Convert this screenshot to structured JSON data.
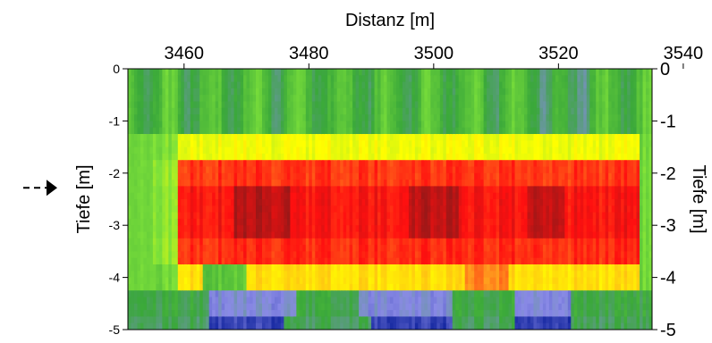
{
  "chart_data": {
    "type": "heatmap",
    "xlabel": "Distanz [m]",
    "ylabel_left": "Tiefe [m]",
    "ylabel_right": "Tiefe [m]",
    "xlim": [
      3451,
      3535
    ],
    "ylim": [
      -5,
      0
    ],
    "x_ticks": [
      3460,
      3480,
      3500,
      3520,
      3540
    ],
    "y_ticks": [
      0,
      -1,
      -2,
      -3,
      -4,
      -5
    ],
    "grid": false,
    "colormap": [
      "#0a1e9a",
      "#8a8ae6",
      "#3aa83a",
      "#7ee23a",
      "#ffff00",
      "#ff9c1e",
      "#ff1010",
      "#7a1a1a"
    ],
    "marker": {
      "label": "dashed arrow",
      "depth": -2.35,
      "color": "#000000"
    },
    "layers": [
      {
        "depth_top": 0.0,
        "depth_bottom": -0.6,
        "band": "green"
      },
      {
        "depth_top": -0.6,
        "depth_bottom": -1.25,
        "band": "green"
      },
      {
        "depth_top": -1.25,
        "depth_bottom": -1.75,
        "band": "yellow"
      },
      {
        "depth_top": -1.75,
        "depth_bottom": -2.25,
        "band": "red"
      },
      {
        "depth_top": -2.25,
        "depth_bottom": -3.3,
        "band": "dark-red"
      },
      {
        "depth_top": -3.3,
        "depth_bottom": -3.8,
        "band": "red"
      },
      {
        "depth_top": -3.8,
        "depth_bottom": -4.3,
        "band": "orange-green"
      },
      {
        "depth_top": -4.3,
        "depth_bottom": -4.7,
        "band": "blue-green"
      },
      {
        "depth_top": -4.7,
        "depth_bottom": -5.0,
        "band": "dark-blue"
      }
    ]
  }
}
